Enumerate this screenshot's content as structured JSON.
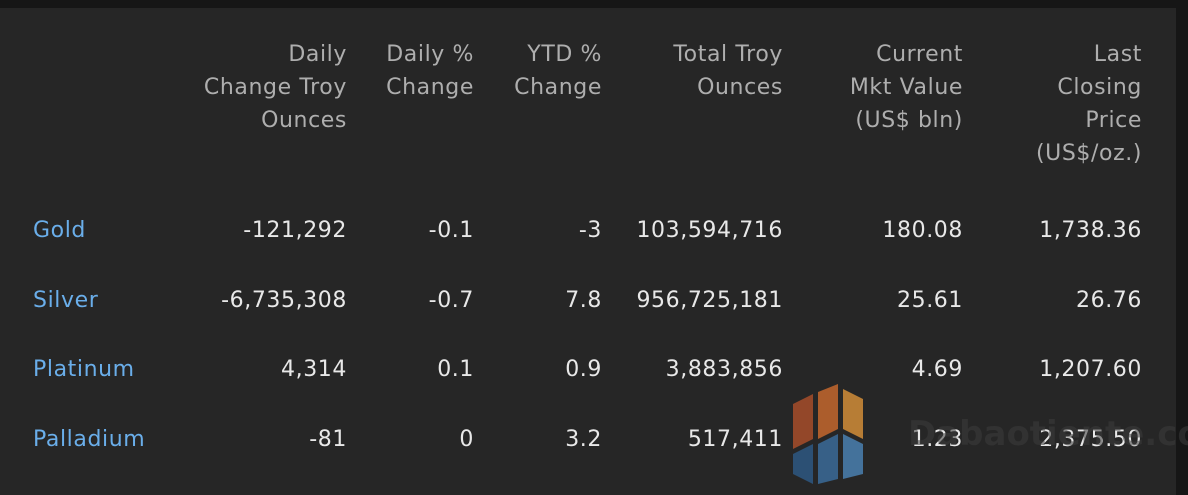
{
  "table": {
    "headers": [
      "",
      "Daily Change Troy Ounces",
      "Daily % Change",
      "YTD % Change",
      "Total Troy Ounces",
      "Current Mkt Value (US$ bln)",
      "Last Closing Price (US$/oz.)"
    ],
    "header_lines": [
      [],
      [
        "Daily",
        "Change Troy",
        "Ounces"
      ],
      [
        "Daily %",
        "Change"
      ],
      [
        "YTD %",
        "Change"
      ],
      [
        "Total Troy",
        "Ounces"
      ],
      [
        "Current",
        "Mkt Value",
        "(US$ bln)"
      ],
      [
        "Last",
        "Closing",
        "Price",
        "(US$/oz.)"
      ]
    ],
    "rows": [
      [
        "Gold",
        "-121,292",
        "-0.1",
        "-3",
        "103,594,716",
        "180.08",
        "1,738.36"
      ],
      [
        "Silver",
        "-6,735,308",
        "-0.7",
        "7.8",
        "956,725,181",
        "25.61",
        "26.76"
      ],
      [
        "Platinum",
        "4,314",
        "0.1",
        "0.9",
        "3,883,856",
        "4.69",
        "1,207.60"
      ],
      [
        "Palladium",
        "-81",
        "0",
        "3.2",
        "517,411",
        "1.23",
        "2,375.50"
      ]
    ]
  },
  "watermark": {
    "text": "Dabaotiente.com",
    "icon": "cube-logo-icon"
  },
  "colors": {
    "background": "#262626",
    "header_text": "#aeaeae",
    "value_text": "#e8e8e8",
    "metal_link": "#6aaeea"
  }
}
